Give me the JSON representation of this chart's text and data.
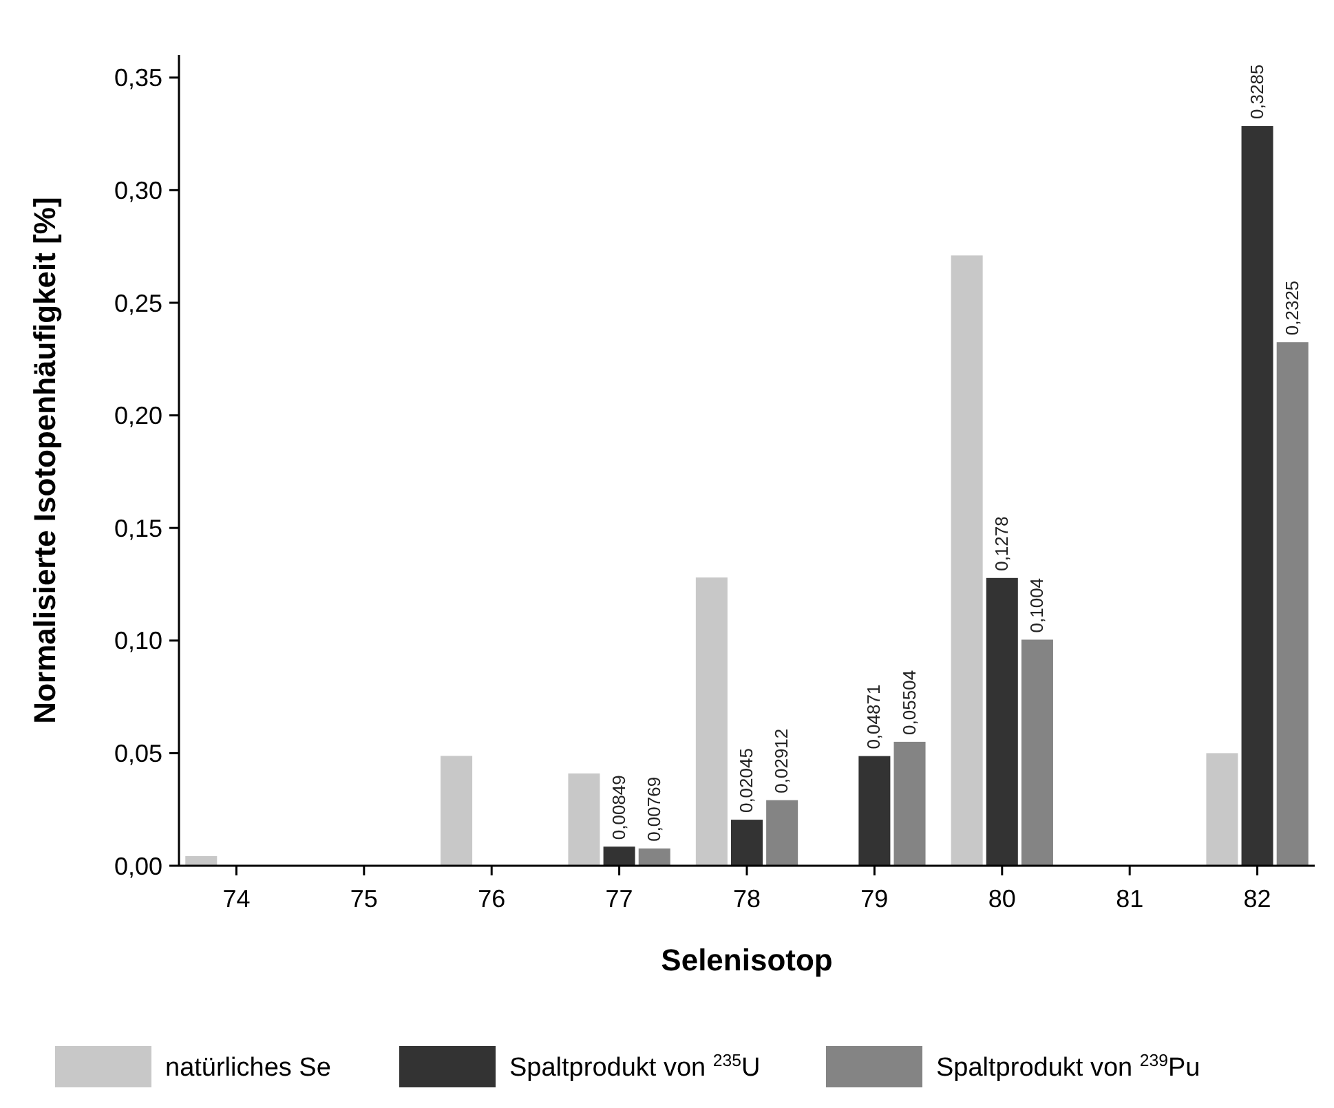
{
  "chart_data": {
    "type": "bar",
    "xlabel": "Selenisotop",
    "ylabel": "Normalisierte Isotopenhäufigkeit [%]",
    "categories": [
      "74",
      "75",
      "76",
      "77",
      "78",
      "79",
      "80",
      "81",
      "82"
    ],
    "series": [
      {
        "name": "natürliches Se",
        "color": "#c8c8c8",
        "values": [
          0.0043,
          null,
          0.0488,
          0.041,
          0.128,
          null,
          0.271,
          null,
          0.05
        ]
      },
      {
        "name": "Spaltprodukt von $^{235}$U",
        "color": "#333333",
        "values": [
          null,
          null,
          null,
          0.00849,
          0.02045,
          0.04871,
          0.1278,
          null,
          0.3285
        ],
        "value_labels": [
          null,
          null,
          null,
          "0,00849",
          "0,02045",
          "0,04871",
          "0,1278",
          null,
          "0,3285"
        ]
      },
      {
        "name": "Spaltprodukt von $^{239}$Pu",
        "color": "#848484",
        "values": [
          null,
          null,
          null,
          0.00769,
          0.02912,
          0.05504,
          0.1004,
          null,
          0.2325
        ],
        "value_labels": [
          null,
          null,
          null,
          "0,00769",
          "0,02912",
          "0,05504",
          "0,1004",
          null,
          "0,2325"
        ]
      }
    ],
    "ylim": [
      0,
      0.36
    ],
    "yticks": [
      {
        "value": 0,
        "label": "0,00"
      },
      {
        "value": 0.05,
        "label": "0,05"
      },
      {
        "value": 0.1,
        "label": "0,10"
      },
      {
        "value": 0.15,
        "label": "0,15"
      },
      {
        "value": 0.2,
        "label": "0,20"
      },
      {
        "value": 0.25,
        "label": "0,25"
      },
      {
        "value": 0.3,
        "label": "0,30"
      },
      {
        "value": 0.35,
        "label": "0,35"
      }
    ],
    "legend": "bottom",
    "grid": false
  }
}
